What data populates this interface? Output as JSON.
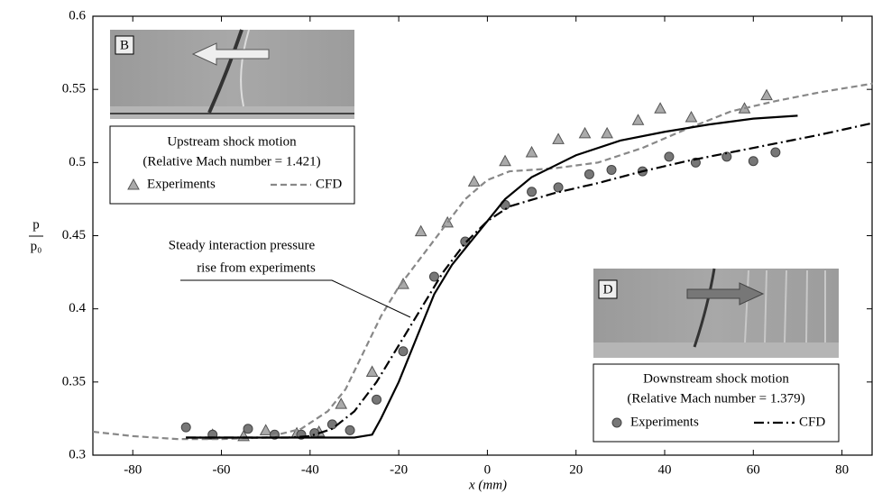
{
  "chart_data": {
    "type": "line",
    "xlabel": "x (mm)",
    "ylabel": {
      "numerator": "p",
      "denominator": "p₀"
    },
    "xlim": [
      -89,
      87
    ],
    "ylim": [
      0.3,
      0.6
    ],
    "xticks": [
      -80,
      -60,
      -40,
      -20,
      0,
      20,
      40,
      60,
      80
    ],
    "yticks": [
      0.3,
      0.35,
      0.4,
      0.45,
      0.5,
      0.55,
      0.6
    ],
    "annotation": [
      "Steady interaction pressure",
      "rise from experiments"
    ],
    "panels": [
      {
        "label": "B",
        "title": [
          "Upstream shock motion",
          "(Relative Mach number = 1.421)"
        ]
      },
      {
        "label": "D",
        "title": [
          "Downstream shock motion",
          "(Relative Mach number = 1.379)"
        ]
      }
    ],
    "series": [
      {
        "name": "Experiments",
        "color": "#aaaaaa",
        "marker": "triangle",
        "x": [
          -62,
          -55,
          -50,
          -43,
          -38,
          -33,
          -26,
          -19,
          -15,
          -9,
          -3,
          4,
          10,
          16,
          22,
          27,
          34,
          39,
          46,
          58,
          63
        ],
        "values": [
          0.314,
          0.313,
          0.317,
          0.315,
          0.316,
          0.335,
          0.357,
          0.417,
          0.453,
          0.459,
          0.487,
          0.501,
          0.507,
          0.516,
          0.52,
          0.52,
          0.529,
          0.537,
          0.531,
          0.537,
          0.546
        ]
      },
      {
        "name": "Experiments",
        "color": "#777777",
        "marker": "circle",
        "x": [
          -68,
          -62,
          -54,
          -48,
          -42,
          -39,
          -35,
          -31,
          -25,
          -19,
          -12,
          -5,
          4,
          10,
          16,
          23,
          28,
          35,
          41,
          47,
          54,
          60,
          65
        ],
        "values": [
          0.319,
          0.314,
          0.318,
          0.314,
          0.314,
          0.315,
          0.321,
          0.317,
          0.338,
          0.371,
          0.422,
          0.446,
          0.471,
          0.48,
          0.483,
          0.492,
          0.495,
          0.494,
          0.504,
          0.5,
          0.504,
          0.501,
          0.507
        ]
      },
      {
        "name": "CFD",
        "color": "#888888",
        "linestyle": "dashed",
        "x": [
          -89,
          -80,
          -70,
          -60,
          -50,
          -42,
          -36,
          -32,
          -28,
          -24,
          -20,
          -15,
          -10,
          -5,
          0,
          5,
          15,
          25,
          35,
          45,
          55,
          65,
          75,
          87
        ],
        "values": [
          0.316,
          0.313,
          0.311,
          0.311,
          0.312,
          0.318,
          0.33,
          0.345,
          0.37,
          0.395,
          0.415,
          0.435,
          0.455,
          0.475,
          0.488,
          0.494,
          0.496,
          0.5,
          0.51,
          0.523,
          0.535,
          0.542,
          0.548,
          0.554
        ]
      },
      {
        "name": "CFD",
        "color": "#000000",
        "linestyle": "dashdot",
        "x": [
          -68,
          -45,
          -40,
          -35,
          -30,
          -25,
          -20,
          -15,
          -10,
          -5,
          0,
          5,
          15,
          25,
          35,
          45,
          55,
          65,
          75,
          87
        ],
        "values": [
          0.312,
          0.312,
          0.313,
          0.318,
          0.33,
          0.35,
          0.375,
          0.4,
          0.425,
          0.445,
          0.46,
          0.47,
          0.479,
          0.486,
          0.494,
          0.501,
          0.507,
          0.513,
          0.519,
          0.527
        ]
      },
      {
        "color": "#000000",
        "linestyle": "solid",
        "x": [
          -68,
          -30,
          -26,
          -24,
          -20,
          -16,
          -12,
          -8,
          -4,
          0,
          4,
          10,
          20,
          30,
          40,
          50,
          60,
          70
        ],
        "values": [
          0.312,
          0.312,
          0.314,
          0.325,
          0.35,
          0.38,
          0.41,
          0.43,
          0.445,
          0.46,
          0.475,
          0.49,
          0.505,
          0.515,
          0.521,
          0.526,
          0.53,
          0.532
        ]
      }
    ]
  }
}
